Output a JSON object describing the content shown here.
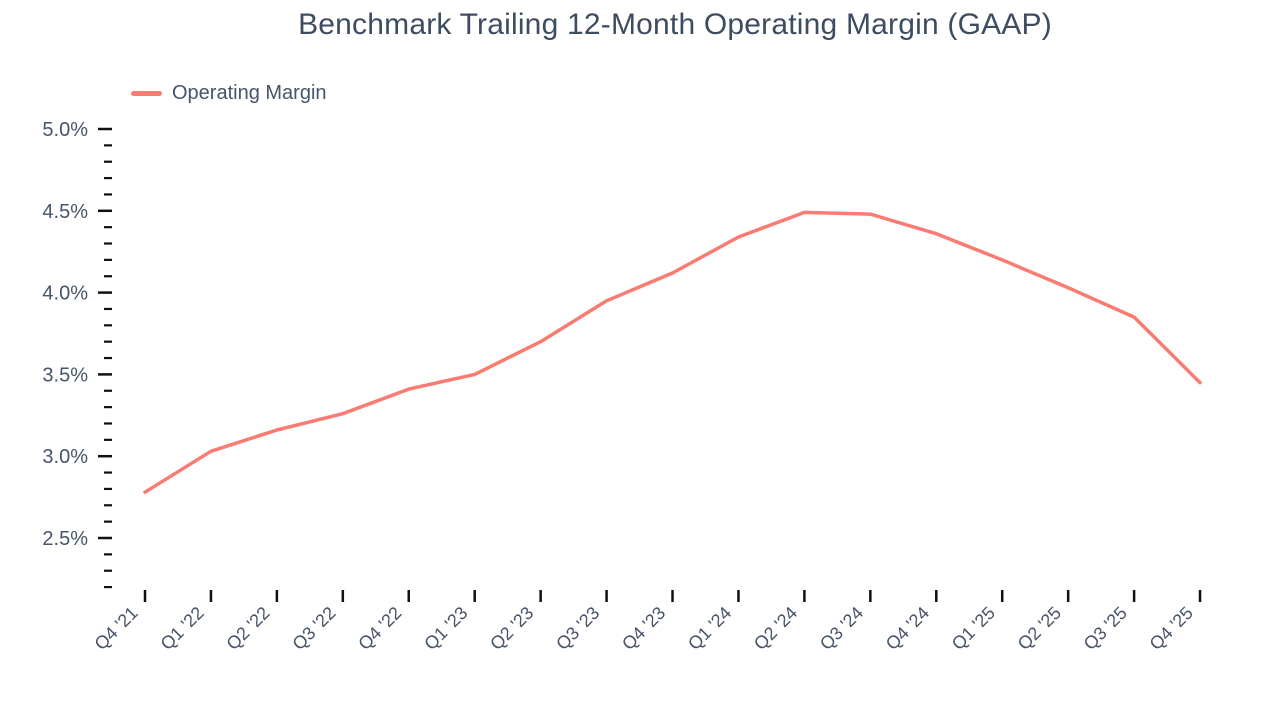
{
  "title": "Benchmark Trailing 12-Month Operating Margin (GAAP)",
  "legend": {
    "items": [
      {
        "label": "Operating Margin",
        "color": "#f97b72"
      }
    ]
  },
  "colors": {
    "line": "#f97b72",
    "title_text": "#3e4c61",
    "axis_text": "#475569",
    "tick": "#111111"
  },
  "chart_data": {
    "type": "line",
    "title": "Benchmark Trailing 12-Month Operating Margin (GAAP)",
    "categories": [
      "Q4 '21",
      "Q1 '22",
      "Q2 '22",
      "Q3 '22",
      "Q4 '22",
      "Q1 '23",
      "Q2 '23",
      "Q3 '23",
      "Q4 '23",
      "Q1 '24",
      "Q2 '24",
      "Q3 '24",
      "Q4 '24",
      "Q1 '25",
      "Q2 '25",
      "Q3 '25",
      "Q4 '25"
    ],
    "series": [
      {
        "name": "Operating Margin",
        "color": "#f97b72",
        "values": [
          2.78,
          3.03,
          3.16,
          3.26,
          3.41,
          3.5,
          3.7,
          3.95,
          4.12,
          4.34,
          4.49,
          4.48,
          4.36,
          4.2,
          4.03,
          3.85,
          3.45
        ]
      }
    ],
    "unit": "%",
    "yticks": [
      {
        "value": 5.0,
        "label": "5.0%"
      },
      {
        "value": 4.5,
        "label": "4.5%"
      },
      {
        "value": 4.0,
        "label": "4.0%"
      },
      {
        "value": 3.5,
        "label": "3.5%"
      },
      {
        "value": 3.0,
        "label": "3.0%"
      },
      {
        "value": 2.5,
        "label": "2.5%"
      }
    ],
    "y_minor_step": 0.1,
    "ylim": [
      2.2,
      5.0
    ],
    "xlabel": "",
    "ylabel": "",
    "grid": false,
    "legend_position": "top-left"
  }
}
